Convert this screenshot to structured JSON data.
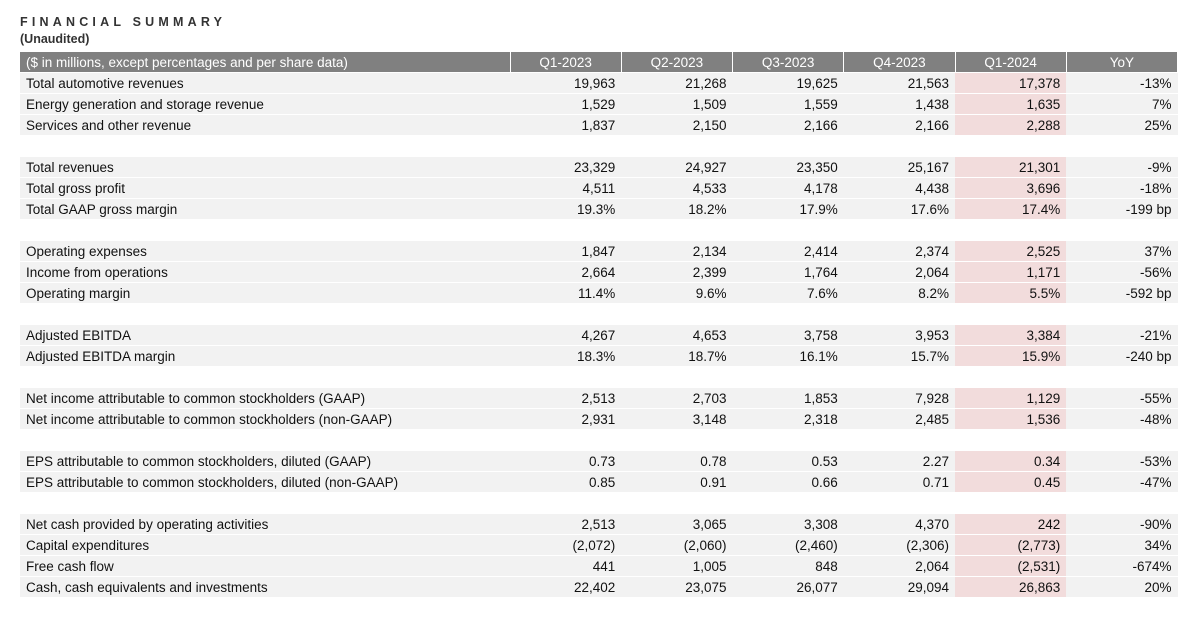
{
  "header": {
    "title": "FINANCIAL SUMMARY",
    "subtitle": "(Unaudited)"
  },
  "table": {
    "columns": [
      "($ in millions, except percentages and per share data)",
      "Q1-2023",
      "Q2-2023",
      "Q3-2023",
      "Q4-2023",
      "Q1-2024",
      "YoY"
    ],
    "groups": [
      [
        [
          "Total automotive revenues",
          "19,963",
          "21,268",
          "19,625",
          "21,563",
          "17,378",
          "-13%"
        ],
        [
          "Energy generation and storage revenue",
          "1,529",
          "1,509",
          "1,559",
          "1,438",
          "1,635",
          "7%"
        ],
        [
          "Services and other revenue",
          "1,837",
          "2,150",
          "2,166",
          "2,166",
          "2,288",
          "25%"
        ]
      ],
      [
        [
          "Total revenues",
          "23,329",
          "24,927",
          "23,350",
          "25,167",
          "21,301",
          "-9%"
        ],
        [
          "Total gross profit",
          "4,511",
          "4,533",
          "4,178",
          "4,438",
          "3,696",
          "-18%"
        ],
        [
          "Total GAAP gross margin",
          "19.3%",
          "18.2%",
          "17.9%",
          "17.6%",
          "17.4%",
          "-199 bp"
        ]
      ],
      [
        [
          "Operating expenses",
          "1,847",
          "2,134",
          "2,414",
          "2,374",
          "2,525",
          "37%"
        ],
        [
          "Income from operations",
          "2,664",
          "2,399",
          "1,764",
          "2,064",
          "1,171",
          "-56%"
        ],
        [
          "Operating margin",
          "11.4%",
          "9.6%",
          "7.6%",
          "8.2%",
          "5.5%",
          "-592 bp"
        ]
      ],
      [
        [
          "Adjusted EBITDA",
          "4,267",
          "4,653",
          "3,758",
          "3,953",
          "3,384",
          "-21%"
        ],
        [
          "Adjusted EBITDA margin",
          "18.3%",
          "18.7%",
          "16.1%",
          "15.7%",
          "15.9%",
          "-240 bp"
        ]
      ],
      [
        [
          "Net income attributable to common stockholders (GAAP)",
          "2,513",
          "2,703",
          "1,853",
          "7,928",
          "1,129",
          "-55%"
        ],
        [
          "Net income attributable to common stockholders (non-GAAP)",
          "2,931",
          "3,148",
          "2,318",
          "2,485",
          "1,536",
          "-48%"
        ]
      ],
      [
        [
          "EPS attributable to common stockholders, diluted (GAAP)",
          "0.73",
          "0.78",
          "0.53",
          "2.27",
          "0.34",
          "-53%"
        ],
        [
          "EPS attributable to common stockholders, diluted (non-GAAP)",
          "0.85",
          "0.91",
          "0.66",
          "0.71",
          "0.45",
          "-47%"
        ]
      ],
      [
        [
          "Net cash provided by operating activities",
          "2,513",
          "3,065",
          "3,308",
          "4,370",
          "242",
          "-90%"
        ],
        [
          "Capital expenditures",
          "(2,072)",
          "(2,060)",
          "(2,460)",
          "(2,306)",
          "(2,773)",
          "34%"
        ],
        [
          "Free cash flow",
          "441",
          "1,005",
          "848",
          "2,064",
          "(2,531)",
          "-674%"
        ],
        [
          "Cash, cash equivalents and investments",
          "22,402",
          "23,075",
          "26,077",
          "29,094",
          "26,863",
          "20%"
        ]
      ]
    ]
  }
}
